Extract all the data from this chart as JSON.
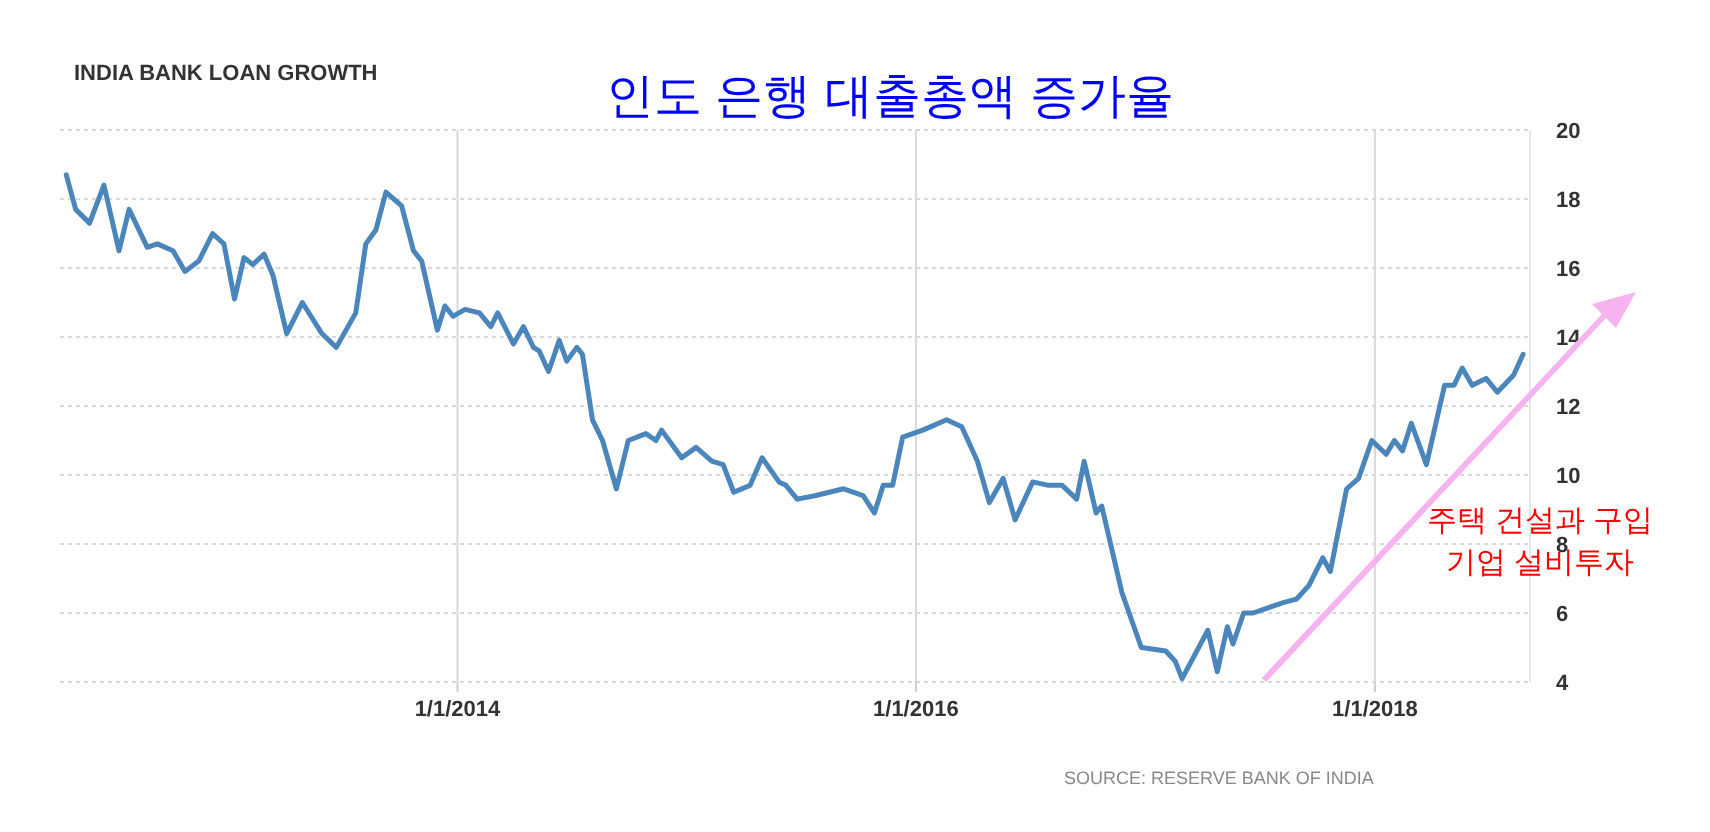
{
  "chart_data": {
    "type": "line",
    "title": "인도 은행 대출총액 증가율",
    "subtitle": "INDIA BANK LOAN GROWTH",
    "annotations": [
      "주택 건설과 구입\n기업 설비투자",
      "SOURCE: RESERVE BANK OF INDIA"
    ],
    "x": [
      "2012-04-18",
      "2012-05-03",
      "2012-05-25",
      "2012-06-17",
      "2012-07-11",
      "2012-07-27",
      "2012-08-25",
      "2012-09-10",
      "2012-10-05",
      "2012-10-24",
      "2012-11-15",
      "2012-12-07",
      "2012-12-25",
      "2013-01-11",
      "2013-01-26",
      "2013-02-09",
      "2013-02-27",
      "2013-03-13",
      "2013-04-04",
      "2013-04-29",
      "2013-05-30",
      "2013-06-22",
      "2013-07-23",
      "2013-08-08",
      "2013-08-24",
      "2013-09-09",
      "2013-10-04",
      "2013-10-23",
      "2013-11-05",
      "2013-11-30",
      "2013-12-12",
      "2013-12-25",
      "2014-01-13",
      "2014-02-05",
      "2014-02-23",
      "2014-03-06",
      "2014-03-31",
      "2014-04-16",
      "2014-05-02",
      "2014-05-11",
      "2014-05-26",
      "2014-06-12",
      "2014-06-24",
      "2014-07-10",
      "2014-07-19",
      "2014-08-04",
      "2014-08-20",
      "2014-09-11",
      "2014-09-30",
      "2014-10-28",
      "2014-11-13",
      "2014-11-22",
      "2014-12-24",
      "2015-01-16",
      "2015-02-10",
      "2015-02-28",
      "2015-03-17",
      "2015-04-12",
      "2015-05-01",
      "2015-05-28",
      "2015-06-08",
      "2015-06-26",
      "2015-07-24",
      "2015-09-08",
      "2015-10-09",
      "2015-10-27",
      "2015-11-10",
      "2015-11-25",
      "2015-12-11",
      "2016-01-12",
      "2016-02-19",
      "2016-03-14",
      "2016-04-08",
      "2016-04-27",
      "2016-05-19",
      "2016-06-07",
      "2016-07-05",
      "2016-07-30",
      "2016-08-21",
      "2016-09-13",
      "2016-09-25",
      "2016-10-14",
      "2016-10-23",
      "2016-11-24",
      "2016-12-25",
      "2017-02-02",
      "2017-02-17",
      "2017-02-28",
      "2017-04-10",
      "2017-04-25",
      "2017-05-11",
      "2017-05-20",
      "2017-06-06",
      "2017-06-21",
      "2017-08-08",
      "2017-08-29",
      "2017-09-18",
      "2017-10-10",
      "2017-10-22",
      "2017-11-17",
      "2017-12-06",
      "2017-12-27",
      "2018-01-19",
      "2018-02-01",
      "2018-02-14",
      "2018-02-28",
      "2018-03-24",
      "2018-04-22",
      "2018-05-07",
      "2018-05-20",
      "2018-06-05",
      "2018-06-27",
      "2018-07-15",
      "2018-08-10",
      "2018-08-25"
    ],
    "series": [
      {
        "color": "#4a86bb",
        "values": [
          18.7,
          17.7,
          17.3,
          18.4,
          16.5,
          17.7,
          16.6,
          16.7,
          16.5,
          15.9,
          16.2,
          17.0,
          16.7,
          15.1,
          16.3,
          16.1,
          16.4,
          15.8,
          14.1,
          15.0,
          14.1,
          13.7,
          14.7,
          16.7,
          17.1,
          18.2,
          17.8,
          16.5,
          16.2,
          14.2,
          14.9,
          14.6,
          14.8,
          14.7,
          14.3,
          14.7,
          13.8,
          14.3,
          13.7,
          13.6,
          13.0,
          13.9,
          13.3,
          13.7,
          13.5,
          11.6,
          11.0,
          9.6,
          11.0,
          11.2,
          11.0,
          11.3,
          10.5,
          10.8,
          10.4,
          10.3,
          9.5,
          9.7,
          10.5,
          9.8,
          9.7,
          9.3,
          9.4,
          9.6,
          9.4,
          8.9,
          9.7,
          9.7,
          11.1,
          11.3,
          11.6,
          11.4,
          10.4,
          9.2,
          9.9,
          8.7,
          9.8,
          9.7,
          9.7,
          9.3,
          10.4,
          8.9,
          9.1,
          6.6,
          5.0,
          4.9,
          4.6,
          4.1,
          5.5,
          4.3,
          5.6,
          5.1,
          6.0,
          6.0,
          6.3,
          6.4,
          6.8,
          7.6,
          7.2,
          9.6,
          9.9,
          11.0,
          10.6,
          11.0,
          10.7,
          11.5,
          10.3,
          12.6,
          12.6,
          13.1,
          12.6,
          12.8,
          12.4,
          12.9,
          13.5
        ]
      }
    ],
    "xlim": [
      "2012-04-08",
      "2018-09-05"
    ],
    "xticks": [
      {
        "value": "2014-01-01",
        "label": "1/1/2014"
      },
      {
        "value": "2016-01-01",
        "label": "1/1/2016"
      },
      {
        "value": "2018-01-01",
        "label": "1/1/2018"
      }
    ],
    "ylim": [
      4,
      20
    ],
    "yticks": [
      4,
      6,
      8,
      10,
      12,
      14,
      16,
      18,
      20
    ],
    "grid": true
  }
}
